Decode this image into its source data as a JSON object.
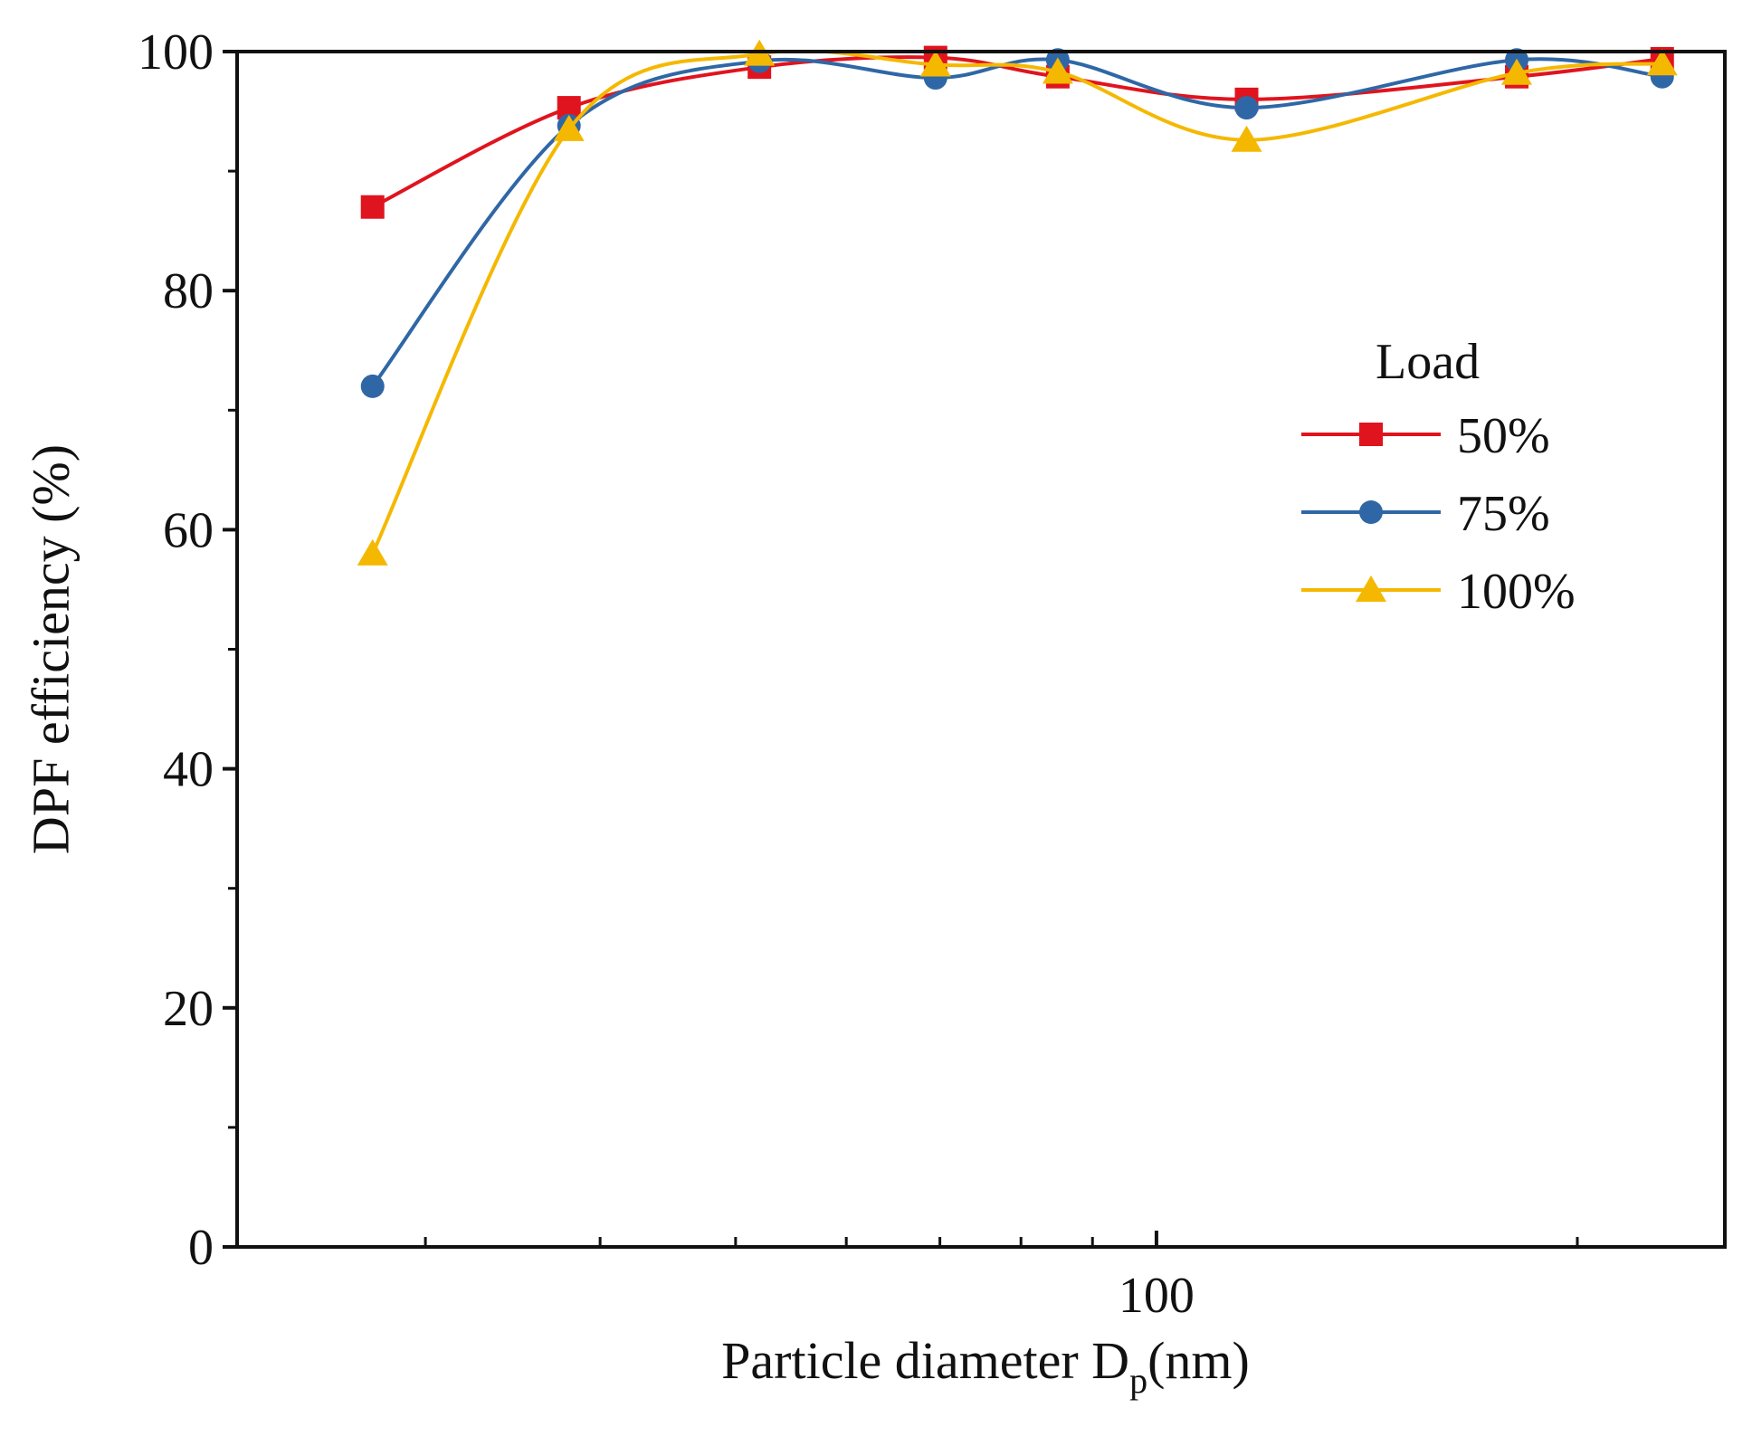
{
  "chart_data": {
    "type": "line",
    "xscale": "log",
    "xlabel_main": "Particle diameter D",
    "xlabel_sub": "p",
    "xlabel_unit": "(nm)",
    "ylabel": "DPF efficiency (%)",
    "ylim": [
      0,
      100
    ],
    "xlim": [
      22,
      255
    ],
    "xticks_major": [
      100
    ],
    "xtick_labels": [
      "100"
    ],
    "xticks_minor": [
      30,
      40,
      50,
      60,
      70,
      80,
      90,
      200
    ],
    "yticks_major": [
      0,
      20,
      40,
      60,
      80,
      100
    ],
    "ytick_labels": [
      "0",
      "20",
      "40",
      "60",
      "80",
      "100"
    ],
    "yticks_minor": [
      10,
      30,
      50,
      70,
      90
    ],
    "legend_title": "Load",
    "legend_position": "right",
    "x": [
      27.5,
      38,
      52,
      69.5,
      85,
      116,
      181,
      230
    ],
    "series": [
      {
        "name": "50%",
        "color": "#e0141e",
        "marker": "square",
        "values": [
          87.0,
          95.3,
          98.7,
          99.5,
          97.9,
          96.0,
          97.9,
          99.4
        ]
      },
      {
        "name": "75%",
        "color": "#2f67a6",
        "marker": "circle",
        "values": [
          72.0,
          93.8,
          99.2,
          97.8,
          99.3,
          95.3,
          99.3,
          97.9
        ]
      },
      {
        "name": "100%",
        "color": "#f5b800",
        "marker": "triangle",
        "values": [
          58.0,
          93.5,
          99.8,
          98.9,
          98.3,
          92.6,
          98.2,
          99.0
        ]
      }
    ]
  }
}
